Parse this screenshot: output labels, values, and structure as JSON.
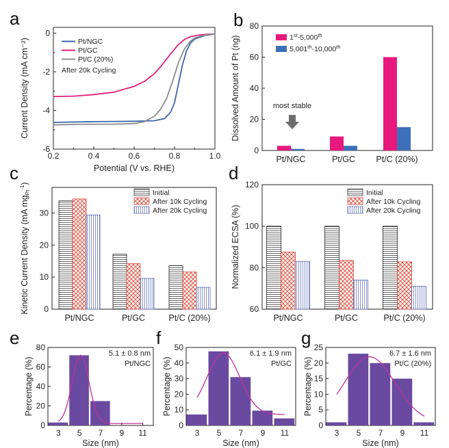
{
  "chart_data": [
    {
      "panel": "a",
      "type": "line",
      "xlabel": "Potential (V vs. RHE)",
      "ylabel": "Current Density (mA cm⁻²)",
      "xlim": [
        0.2,
        1.0
      ],
      "ylim": [
        -6,
        0.3
      ],
      "xticks": [
        "0.2",
        "0.4",
        "0.6",
        "0.8",
        "1.0"
      ],
      "yticks": [
        "0",
        "-2",
        "-4",
        "-6"
      ],
      "legend": "top-left",
      "note": "After 20k Cycling",
      "series": [
        {
          "name": "Pt/NGC",
          "color": "#3a64a8",
          "x": [
            0.2,
            0.3,
            0.4,
            0.5,
            0.6,
            0.7,
            0.75,
            0.78,
            0.8,
            0.82,
            0.84,
            0.86,
            0.88,
            0.9,
            0.95,
            1.0
          ],
          "y": [
            -4.62,
            -4.6,
            -4.58,
            -4.57,
            -4.56,
            -4.53,
            -4.42,
            -4.1,
            -3.6,
            -2.6,
            -1.6,
            -0.9,
            -0.5,
            -0.3,
            -0.12,
            -0.05
          ]
        },
        {
          "name": "Pt/GC",
          "color": "#e0207a",
          "x": [
            0.2,
            0.3,
            0.4,
            0.5,
            0.6,
            0.65,
            0.7,
            0.73,
            0.76,
            0.79,
            0.82,
            0.85,
            0.88,
            0.92,
            0.96,
            1.0
          ],
          "y": [
            -3.28,
            -3.26,
            -3.18,
            -3.05,
            -2.75,
            -2.5,
            -2.1,
            -1.75,
            -1.35,
            -0.95,
            -0.58,
            -0.32,
            -0.18,
            -0.1,
            -0.06,
            -0.04
          ]
        },
        {
          "name": "Pt/C (20%)",
          "color": "#8c8c8c",
          "x": [
            0.2,
            0.3,
            0.4,
            0.5,
            0.6,
            0.65,
            0.7,
            0.73,
            0.76,
            0.79,
            0.82,
            0.85,
            0.88,
            0.9,
            0.95,
            1.0
          ],
          "y": [
            -4.75,
            -4.72,
            -4.71,
            -4.71,
            -4.68,
            -4.58,
            -4.3,
            -3.95,
            -3.4,
            -2.5,
            -1.5,
            -0.8,
            -0.4,
            -0.25,
            -0.1,
            -0.05
          ]
        }
      ]
    },
    {
      "panel": "b",
      "type": "bar",
      "ylabel": "Dissolved Amount of Pt (ng)",
      "ylim": [
        0,
        80
      ],
      "yticks": [
        "0",
        "20",
        "40",
        "60",
        "80"
      ],
      "categories": [
        "Pt/NGC",
        "Pt/GC",
        "Pt/C (20%)"
      ],
      "legend": "top-left",
      "series": [
        {
          "name": "1st-5,000th",
          "main": "1",
          "sup1": "st",
          "mid": "-5,000",
          "sup2": "th",
          "color": "#e8197c",
          "values": [
            3,
            9,
            60
          ]
        },
        {
          "name": "5,001th-10,000th",
          "main": "5,001",
          "sup1": "th",
          "mid": "-10,000",
          "sup2": "th",
          "color": "#3e6fba",
          "values": [
            1,
            3,
            15
          ]
        }
      ],
      "annotation": "most stable"
    },
    {
      "panel": "c",
      "type": "bar",
      "ylabel": "Kinetic Current Density (mA mg",
      "ylabel_sub": "Pt",
      "ylabel_sup": "-1",
      "ylim": [
        0,
        38
      ],
      "yticks": [
        "0",
        "10",
        "20",
        "30"
      ],
      "categories": [
        "Pt/NGC",
        "Pt/GC",
        "Pt/C (20%)"
      ],
      "legend": "top-right",
      "series": [
        {
          "name": "Initial",
          "values": [
            33.8,
            17.2,
            13.6
          ]
        },
        {
          "name": "After 10k Cycling",
          "values": [
            34.4,
            14.2,
            11.6
          ]
        },
        {
          "name": "After 20k Cycling",
          "values": [
            29.4,
            9.6,
            6.8
          ]
        }
      ]
    },
    {
      "panel": "d",
      "type": "bar",
      "ylabel": "Normalized ECSA (%)",
      "ylim": [
        60,
        120
      ],
      "yticks": [
        "60",
        "80",
        "100",
        "120"
      ],
      "categories": [
        "Pt/NGC",
        "Pt/GC",
        "Pt/C (20%)"
      ],
      "legend": "top-right",
      "series": [
        {
          "name": "Initial",
          "values": [
            100,
            100,
            100
          ]
        },
        {
          "name": "After 10k Cycling",
          "values": [
            87.5,
            83.5,
            82.8
          ]
        },
        {
          "name": "After 20k Cycling",
          "values": [
            83,
            74,
            71
          ]
        }
      ]
    },
    {
      "panel": "e",
      "type": "bar",
      "xlabel": "Size (nm)",
      "ylabel": "Percentage (%)",
      "ylim": [
        0,
        80
      ],
      "yticks": [
        "0",
        "20",
        "40",
        "60",
        "80"
      ],
      "categories": [
        "3",
        "5",
        "7",
        "9",
        "11"
      ],
      "values": [
        3,
        72,
        25,
        0,
        0
      ],
      "stat": "5.1 ± 0.8 nm",
      "sample": "Pt/NGC",
      "sample_color": "#3e6fba",
      "fit": {
        "mu": 5.1,
        "sigma": 0.8,
        "peak": 72,
        "base": 2
      }
    },
    {
      "panel": "f",
      "type": "bar",
      "xlabel": "Size (nm)",
      "ylabel": "Percentage (%)",
      "ylim": [
        0,
        50
      ],
      "yticks": [
        "0",
        "10",
        "20",
        "30",
        "40",
        "50"
      ],
      "categories": [
        "3",
        "5",
        "7",
        "9",
        "11"
      ],
      "values": [
        7,
        47.5,
        31,
        9.5,
        4.5
      ],
      "stat": "6.1 ± 1.9 nm",
      "sample": "Pt/GC",
      "sample_color": "#e0207a",
      "fit": {
        "mu": 5.4,
        "sigma": 1.5,
        "peak": 46.5,
        "base": 7
      }
    },
    {
      "panel": "g",
      "type": "bar",
      "xlabel": "Size (nm)",
      "ylabel": "Percentage (%)",
      "ylim": [
        0,
        25
      ],
      "yticks": [
        "0",
        "5",
        "10",
        "15",
        "20",
        "25"
      ],
      "categories": [
        "3",
        "5",
        "7",
        "9",
        "11"
      ],
      "values": [
        1,
        23,
        20,
        15,
        1
      ],
      "stat": "6.7 ± 1.6 nm",
      "sample": "Pt/C (20%)",
      "sample_color": "#8c8c8c",
      "fit": {
        "mu": 6.0,
        "sigma": 2.3,
        "peak": 22,
        "base": 1
      }
    }
  ],
  "panel_labels": [
    "a",
    "b",
    "c",
    "d",
    "e",
    "f",
    "g"
  ],
  "colors": {
    "axis": "#222222",
    "hist_bar": "#6a4aa0",
    "hist_fit": "#c0309a",
    "hatch_red": "#d9473a",
    "hatch_blue": "#5563b0"
  }
}
